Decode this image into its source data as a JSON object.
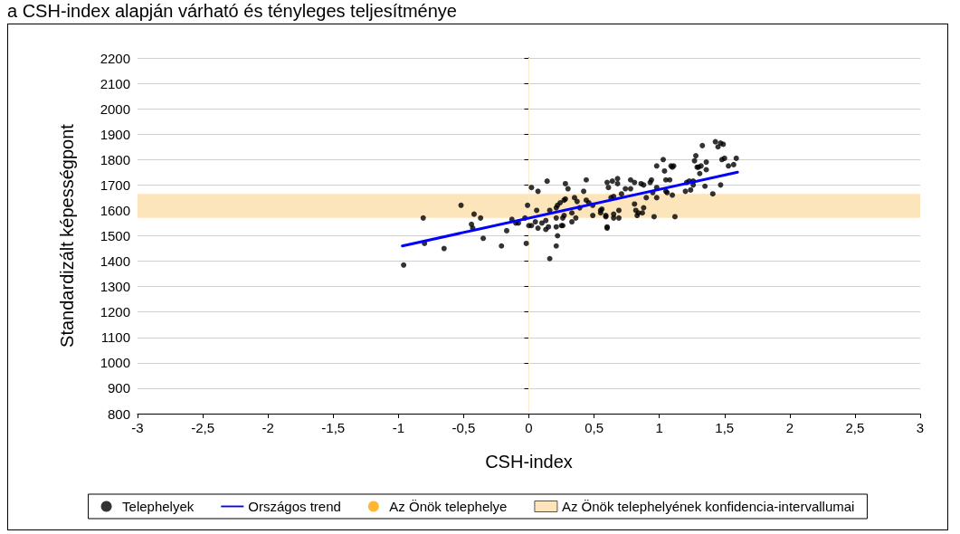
{
  "chart_data": {
    "type": "scatter",
    "title": "a CSH-index alapján várható és tényleges teljesítménye",
    "xlabel": "CSH-index",
    "ylabel": "Standardizált képességpont",
    "xlim": [
      -3,
      3
    ],
    "xticks": [
      -3,
      {
        "value": -2.5,
        "label": "-2,5"
      },
      -2,
      {
        "value": -1.5,
        "label": "-1,5"
      },
      -1,
      {
        "value": -0.5,
        "label": "-0,5"
      },
      0,
      {
        "value": 0.5,
        "label": "0,5"
      },
      1,
      {
        "value": 1.5,
        "label": "1,5"
      },
      2,
      {
        "value": 2.5,
        "label": "2,5"
      },
      3
    ],
    "ylim": [
      800,
      2200
    ],
    "yticks": [
      800,
      900,
      1000,
      1100,
      1200,
      1300,
      1400,
      1500,
      1600,
      1700,
      1800,
      1900,
      2000,
      2100,
      2200
    ],
    "grid": "y",
    "legend": "bottom",
    "bands": [
      {
        "axis": "y",
        "from": 1570,
        "to": 1665,
        "label": "Az Önök telephelyének konfidencia-intervallumai",
        "color": "#fde5bb"
      }
    ],
    "ref_lines": [
      {
        "axis": "x",
        "value": 0,
        "color": "#fde9cc"
      }
    ],
    "series": [
      {
        "name": "Telephelyek",
        "type": "scatter",
        "color": "#000000",
        "marker": "circle",
        "x": [
          -0.96,
          -0.81,
          -0.8,
          -0.65,
          -0.52,
          -0.44,
          -0.42,
          -0.43,
          -0.37,
          -0.35,
          -0.21,
          -0.17,
          -0.13,
          -0.1,
          -0.08,
          -0.02,
          -0.03,
          -0.01,
          0.02,
          0.07,
          0,
          0.02,
          0.06,
          0.05,
          0.07,
          0.1,
          0.14,
          0.16,
          0.13,
          0.13,
          0.15,
          0.16,
          0.21,
          0.22,
          0.21,
          0.25,
          0.26,
          0.21,
          0.26,
          0.27,
          0.21,
          0.22,
          0.24,
          0.27,
          0.28,
          0.28,
          0.3,
          0.33,
          0.33,
          0.36,
          0.35,
          0.37,
          0.39,
          0.42,
          0.44,
          0.44,
          0.46,
          0.49,
          0.49,
          0.55,
          0.59,
          0.6,
          0.6,
          0.64,
          0.68,
          0.68,
          0.61,
          0.63,
          0.65,
          0.56,
          0.55,
          0.59,
          0.6,
          0.65,
          0.65,
          0.69,
          0.69,
          0.71,
          0.74,
          0.78,
          0.78,
          0.81,
          0.81,
          0.82,
          0.83,
          0.84,
          0.86,
          0.88,
          0.88,
          0.87,
          0.9,
          0.93,
          0.94,
          0.95,
          0.96,
          0.98,
          0.98,
          0.98,
          1.03,
          1.04,
          1.05,
          1.05,
          1.06,
          1.09,
          1.1,
          1.11,
          1.08,
          1.1,
          1.12,
          1.2,
          1.21,
          1.23,
          1.26,
          1.24,
          1.26,
          1.28,
          1.27,
          1.29,
          1.3,
          1.32,
          1.31,
          1.33,
          1.36,
          1.36,
          1.35,
          1.41,
          1.43,
          1.45,
          1.47,
          1.49,
          1.48,
          1.5,
          1.47,
          1.53,
          1.57,
          1.59
        ],
        "values": [
          1385,
          1570,
          1470,
          1450,
          1620,
          1545,
          1585,
          1530,
          1570,
          1490,
          1460,
          1520,
          1565,
          1550,
          1550,
          1470,
          1570,
          1620,
          1690,
          1675,
          1540,
          1540,
          1600,
          1555,
          1530,
          1550,
          1715,
          1600,
          1560,
          1525,
          1535,
          1410,
          1460,
          1500,
          1535,
          1540,
          1540,
          1570,
          1570,
          1580,
          1610,
          1620,
          1630,
          1640,
          1645,
          1705,
          1685,
          1590,
          1555,
          1570,
          1650,
          1635,
          1610,
          1675,
          1720,
          1640,
          1630,
          1580,
          1620,
          1600,
          1580,
          1535,
          1710,
          1715,
          1705,
          1725,
          1690,
          1650,
          1655,
          1605,
          1590,
          1575,
          1530,
          1585,
          1570,
          1570,
          1600,
          1665,
          1685,
          1685,
          1720,
          1710,
          1625,
          1600,
          1580,
          1590,
          1705,
          1700,
          1610,
          1590,
          1650,
          1710,
          1720,
          1670,
          1575,
          1690,
          1775,
          1650,
          1800,
          1755,
          1720,
          1675,
          1670,
          1775,
          1770,
          1775,
          1720,
          1660,
          1575,
          1675,
          1710,
          1715,
          1715,
          1680,
          1700,
          1815,
          1795,
          1770,
          1770,
          1775,
          1745,
          1855,
          1790,
          1760,
          1695,
          1665,
          1870,
          1850,
          1865,
          1860,
          1800,
          1805,
          1700,
          1775,
          1780,
          1805
        ]
      },
      {
        "name": "Országos trend",
        "type": "line",
        "color": "#0000ff",
        "line_style": "solid",
        "x": [
          -0.97,
          1.6
        ],
        "values": [
          1460,
          1750
        ]
      },
      {
        "name": "Az Önök telephelye",
        "type": "scatter",
        "color": "#ffa500",
        "marker": "circle"
      }
    ]
  }
}
